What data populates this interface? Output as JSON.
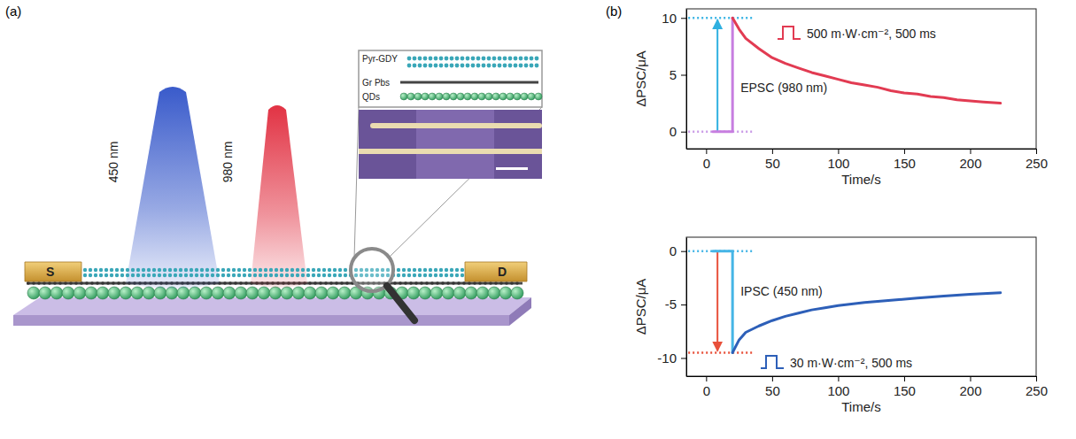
{
  "panel_labels": [
    "(a)",
    "(b)"
  ],
  "diagram": {
    "light_labels": [
      "450 nm",
      "980 nm"
    ],
    "electrodes": [
      "S",
      "D"
    ],
    "layers": [
      "Pyr-GDY",
      "Gr Pbs",
      "QDs"
    ]
  },
  "chart_data": [
    {
      "type": "line",
      "x_label": "Time/s",
      "y_label": "ΔPSC/μA",
      "xlim": [
        -15,
        250
      ],
      "xticks": [
        0,
        50,
        100,
        150,
        200,
        250
      ],
      "ylim": [
        -1.5,
        10.8
      ],
      "yticks": [
        0,
        5,
        10
      ],
      "grid": false,
      "annotations": [
        "500 m·W·cm⁻², 500 ms",
        "EPSC (980 nm)"
      ],
      "series": [
        {
          "color": "#c77ee0",
          "x": [
            5,
            20,
            20
          ],
          "values": [
            0,
            0,
            10
          ]
        },
        {
          "color": "#e23b52",
          "x": [
            20,
            25,
            30,
            40,
            50,
            60,
            70,
            80,
            90,
            100,
            110,
            120,
            130,
            140,
            150,
            160,
            170,
            180,
            190,
            200,
            210,
            223
          ],
          "values": [
            10,
            9.0,
            8.2,
            7.3,
            6.5,
            6.0,
            5.6,
            5.2,
            4.9,
            4.6,
            4.3,
            4.1,
            3.9,
            3.6,
            3.4,
            3.3,
            3.1,
            3.0,
            2.8,
            2.7,
            2.6,
            2.5
          ]
        }
      ]
    },
    {
      "type": "line",
      "x_label": "Time/s",
      "y_label": "ΔPSC/μA",
      "xlim": [
        -15,
        250
      ],
      "xticks": [
        0,
        50,
        100,
        150,
        200,
        250
      ],
      "ylim": [
        -11.7,
        1.3
      ],
      "yticks": [
        -10,
        -5,
        0
      ],
      "grid": false,
      "annotations": [
        "30 m·W·cm⁻², 500 ms",
        "IPSC (450 nm)"
      ],
      "series": [
        {
          "color": "#45b5e6",
          "x": [
            5,
            20,
            20
          ],
          "values": [
            0,
            0,
            -9.5
          ]
        },
        {
          "color": "#2d5fb8",
          "x": [
            20,
            25,
            30,
            40,
            50,
            60,
            70,
            80,
            90,
            100,
            120,
            140,
            160,
            180,
            200,
            223
          ],
          "values": [
            -9.5,
            -8.3,
            -7.6,
            -7.0,
            -6.5,
            -6.1,
            -5.8,
            -5.5,
            -5.3,
            -5.1,
            -4.8,
            -4.6,
            -4.4,
            -4.2,
            -4.05,
            -3.9
          ]
        }
      ]
    }
  ]
}
